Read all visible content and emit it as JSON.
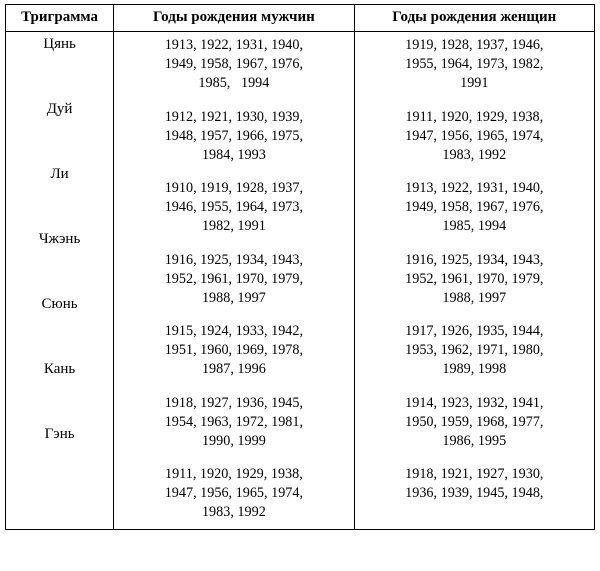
{
  "columns": {
    "trigram": "Триграмма",
    "men": "Годы рождения мужчин",
    "women": "Годы рождения женщин"
  },
  "rows": [
    {
      "trigram": "Цянь",
      "men": [
        "1913, 1922, 1931, 1940,",
        "1949, 1958, 1967, 1976,",
        "1985,   1994"
      ],
      "women": [
        "1919, 1928, 1937, 1946,",
        "1955, 1964, 1973, 1982,",
        "1991"
      ]
    },
    {
      "trigram": "Дуй",
      "men": [
        "1912, 1921, 1930, 1939,",
        "1948, 1957, 1966, 1975,",
        "1984, 1993"
      ],
      "women": [
        "1911, 1920, 1929, 1938,",
        "1947, 1956, 1965, 1974,",
        "1983, 1992"
      ]
    },
    {
      "trigram": "Ли",
      "men": [
        "1910, 1919, 1928, 1937,",
        "1946, 1955, 1964, 1973,",
        "1982, 1991"
      ],
      "women": [
        "1913, 1922, 1931, 1940,",
        "1949, 1958, 1967, 1976,",
        "1985, 1994"
      ]
    },
    {
      "trigram": "Чжэнь",
      "men": [
        "1916, 1925, 1934, 1943,",
        "1952, 1961, 1970, 1979,",
        "1988, 1997"
      ],
      "women": [
        "1916, 1925, 1934, 1943,",
        "1952, 1961, 1970, 1979,",
        "1988, 1997"
      ]
    },
    {
      "trigram": "Сюнь",
      "men": [
        "1915, 1924, 1933, 1942,",
        "1951, 1960, 1969, 1978,",
        "1987, 1996"
      ],
      "women": [
        "1917, 1926, 1935, 1944,",
        "1953, 1962, 1971, 1980,",
        "1989, 1998"
      ]
    },
    {
      "trigram": "Кань",
      "men": [
        "1918, 1927, 1936, 1945,",
        "1954, 1963, 1972, 1981,",
        "1990, 1999"
      ],
      "women": [
        "1914, 1923, 1932, 1941,",
        "1950, 1959, 1968, 1977,",
        "1986, 1995"
      ]
    },
    {
      "trigram": "Гэнь",
      "men": [
        "1911, 1920, 1929, 1938,",
        "1947, 1956, 1965, 1974,",
        "1983, 1992"
      ],
      "women": [
        "1918, 1921, 1927, 1930,",
        "1936, 1939, 1945, 1948,"
      ]
    }
  ]
}
